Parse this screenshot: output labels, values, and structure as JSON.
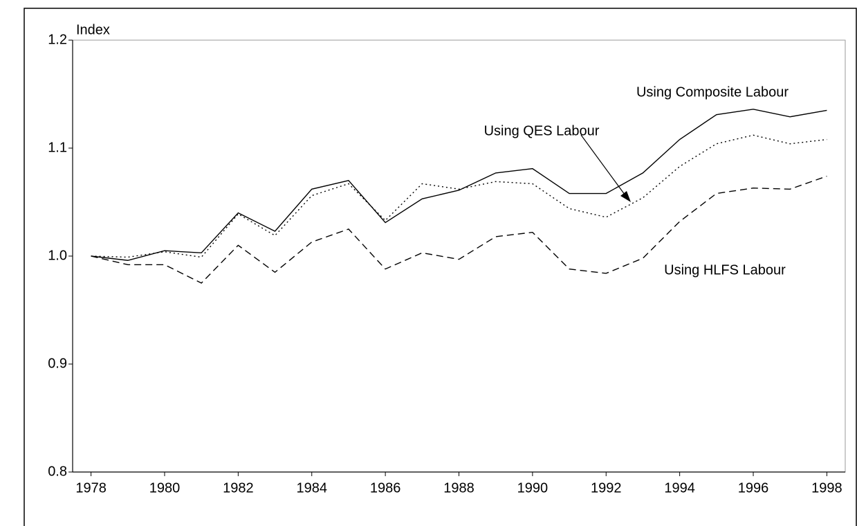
{
  "chart_data": {
    "type": "line",
    "y_label": "Index",
    "x": [
      1978,
      1979,
      1980,
      1981,
      1982,
      1983,
      1984,
      1985,
      1986,
      1987,
      1988,
      1989,
      1990,
      1991,
      1992,
      1993,
      1994,
      1995,
      1996,
      1997,
      1998
    ],
    "series": [
      {
        "name": "Using Composite Labour",
        "color": "#000000",
        "dash": "solid",
        "values": [
          1.0,
          0.996,
          1.005,
          1.003,
          1.04,
          1.023,
          1.062,
          1.07,
          1.031,
          1.053,
          1.061,
          1.077,
          1.081,
          1.058,
          1.058,
          1.077,
          1.108,
          1.131,
          1.136,
          1.129,
          1.135
        ]
      },
      {
        "name": "Using QES Labour",
        "color": "#000000",
        "dash": "dotted",
        "values": [
          1.0,
          0.999,
          1.004,
          0.999,
          1.039,
          1.019,
          1.056,
          1.067,
          1.033,
          1.067,
          1.062,
          1.069,
          1.067,
          1.044,
          1.036,
          1.054,
          1.083,
          1.104,
          1.112,
          1.104,
          1.108
        ]
      },
      {
        "name": "Using HLFS Labour",
        "color": "#000000",
        "dash": "dashed",
        "values": [
          1.0,
          0.992,
          0.992,
          0.975,
          1.01,
          0.985,
          1.013,
          1.025,
          0.988,
          1.003,
          0.997,
          1.018,
          1.022,
          0.988,
          0.984,
          0.998,
          1.032,
          1.058,
          1.063,
          1.062,
          1.074
        ]
      }
    ],
    "xlim": [
      1977.5,
      1998.5
    ],
    "xticks": [
      1978,
      1980,
      1982,
      1984,
      1986,
      1988,
      1990,
      1992,
      1994,
      1996,
      1998
    ],
    "ylim": [
      0.8,
      1.2
    ],
    "yticks": [
      0.8,
      0.9,
      {
        "value": 1,
        "label": "1.0"
      },
      1.1,
      1.2
    ],
    "grid": false
  }
}
